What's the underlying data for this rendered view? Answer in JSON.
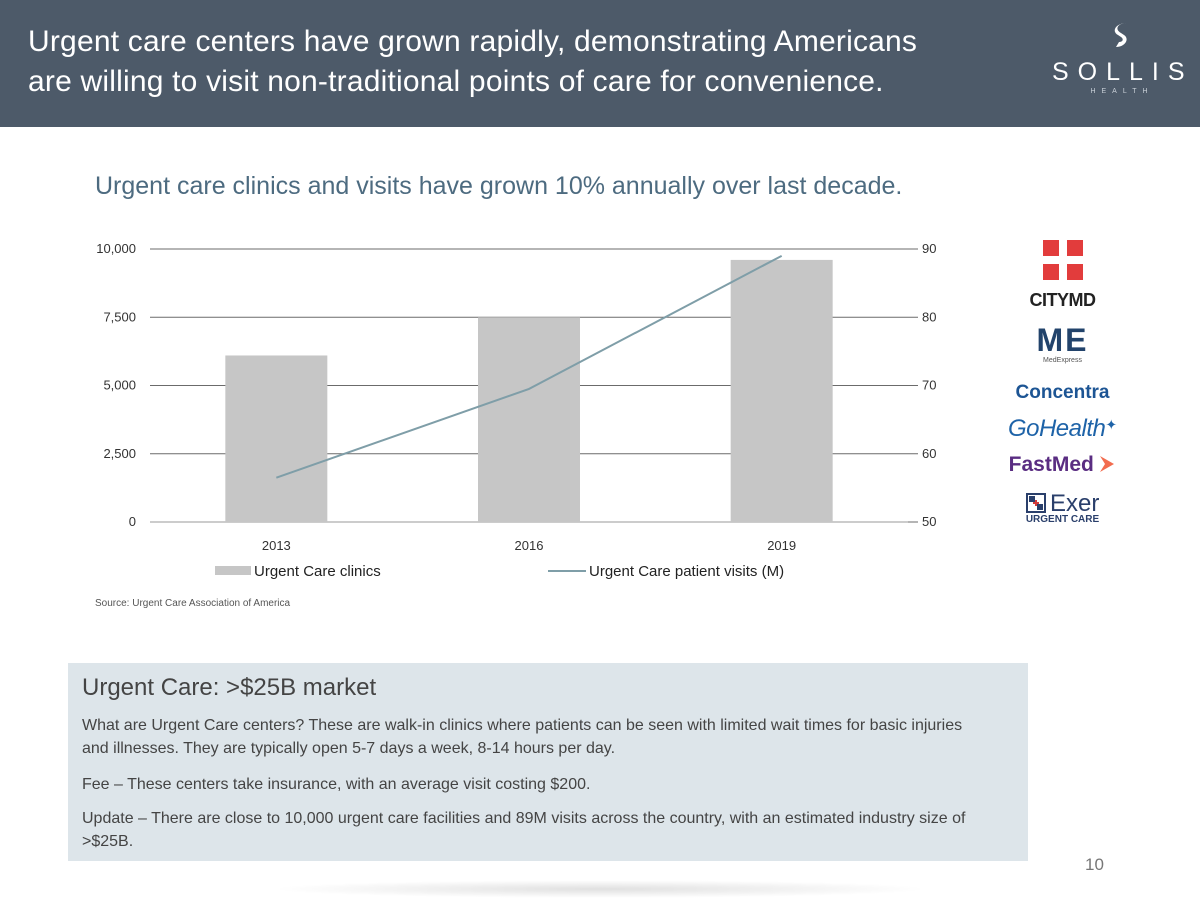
{
  "header": {
    "title_line1": "Urgent care centers have grown rapidly, demonstrating Americans",
    "title_line2": "are willing to visit non-traditional points of care for convenience.",
    "logo_name": "SOLLIS",
    "logo_sub": "HEALTH",
    "bg_color": "#4d5a69"
  },
  "subtitle": "Urgent care clinics and visits have grown 10% annually over last decade.",
  "chart_data": {
    "type": "bar",
    "categories": [
      "2013",
      "2016",
      "2019"
    ],
    "series": [
      {
        "name": "Urgent Care clinics",
        "type": "bar",
        "axis": "left",
        "values": [
          6100,
          7500,
          9600
        ],
        "color": "#c6c6c6"
      },
      {
        "name": "Urgent Care patient visits (M)",
        "type": "line",
        "axis": "right",
        "values": [
          56.5,
          69.5,
          89
        ],
        "color": "#7f9ea8"
      }
    ],
    "y_left": {
      "range": [
        0,
        10000
      ],
      "ticks": [
        0,
        2500,
        5000,
        7500,
        10000
      ],
      "tick_labels": [
        "0",
        "2,500",
        "5,000",
        "7,500",
        "10,000"
      ]
    },
    "y_right": {
      "range": [
        50,
        90
      ],
      "ticks": [
        50,
        60,
        70,
        80,
        90
      ],
      "tick_labels": [
        "50",
        "60",
        "70",
        "80",
        "90"
      ]
    },
    "grid": true,
    "legend_position": "bottom"
  },
  "source": "Source: Urgent Care Association of America",
  "brands": {
    "citymd": "CITYMD",
    "medexpress_mark": "ME",
    "medexpress": "MedExpress",
    "concentra": "Concentra",
    "gohealth": "GoHealth",
    "fastmed": "FastMed",
    "exer": "Exer",
    "exer_sub": "URGENT CARE"
  },
  "info": {
    "title": "Urgent Care: >$25B market",
    "p1": "What are Urgent Care centers? These are walk-in clinics where patients can be seen with limited wait times for basic injuries and illnesses. They are typically open 5-7 days a week, 8-14 hours per day.",
    "p2": "Fee – These centers take insurance, with an average visit costing $200.",
    "p3": "Update – There are close to 10,000 urgent care facilities and 89M visits across the country, with an estimated industry size of >$25B."
  },
  "page_number": "10"
}
